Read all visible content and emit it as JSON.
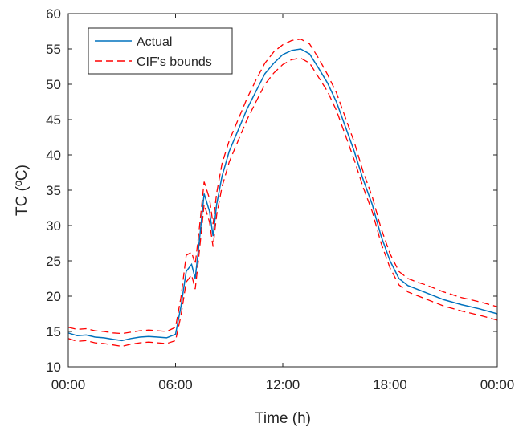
{
  "chart_data": {
    "type": "line",
    "title": "",
    "xlabel": "Time (h)",
    "ylabel": "TC (ºC)",
    "xlim": [
      0,
      24
    ],
    "ylim": [
      10,
      60
    ],
    "xticks": [
      0,
      6,
      12,
      18,
      24
    ],
    "xtick_labels": [
      "00:00",
      "06:00",
      "12:00",
      "18:00",
      "00:00"
    ],
    "yticks": [
      10,
      15,
      20,
      25,
      30,
      35,
      40,
      45,
      50,
      55,
      60
    ],
    "ytick_labels": [
      "10",
      "15",
      "20",
      "25",
      "30",
      "35",
      "40",
      "45",
      "50",
      "55",
      "60"
    ],
    "grid": false,
    "legend_position": "top-left",
    "x": [
      0,
      0.5,
      1,
      1.5,
      2,
      2.5,
      3,
      3.5,
      4,
      4.5,
      5,
      5.5,
      6,
      6.3,
      6.6,
      6.9,
      7.1,
      7.3,
      7.6,
      7.9,
      8.1,
      8.3,
      8.6,
      9,
      9.5,
      10,
      10.5,
      11,
      11.5,
      12,
      12.5,
      13,
      13.5,
      14,
      14.5,
      15,
      15.5,
      16,
      16.5,
      17,
      17.5,
      18,
      18.5,
      19,
      19.5,
      20,
      21,
      22,
      23,
      24
    ],
    "series": [
      {
        "name": "Actual",
        "color": "#0072BD",
        "style": "solid",
        "values": [
          14.8,
          14.4,
          14.5,
          14.2,
          14.1,
          13.9,
          13.7,
          14.0,
          14.2,
          14.3,
          14.2,
          14.1,
          14.6,
          18.5,
          23.5,
          24.5,
          22.5,
          27,
          34.5,
          32,
          28.5,
          33,
          37,
          40.5,
          43.5,
          46.5,
          49,
          51.5,
          53,
          54.2,
          54.8,
          55.0,
          54.3,
          52.3,
          50.2,
          47.5,
          44,
          40.5,
          36.5,
          33,
          28.5,
          25,
          22.5,
          21.5,
          21.0,
          20.5,
          19.5,
          18.8,
          18.2,
          17.5
        ]
      },
      {
        "name": "CIF's bounds",
        "color": "#FF0000",
        "style": "dashed",
        "upper": [
          15.6,
          15.3,
          15.4,
          15.1,
          15.0,
          14.8,
          14.7,
          14.9,
          15.1,
          15.2,
          15.1,
          15.0,
          15.6,
          19.8,
          25.8,
          26.2,
          24.5,
          28.8,
          36.2,
          33.8,
          30.2,
          34.6,
          38.8,
          42.0,
          45.0,
          48.0,
          50.6,
          53.0,
          54.6,
          55.6,
          56.2,
          56.4,
          55.7,
          53.7,
          51.4,
          48.8,
          45.3,
          41.8,
          37.6,
          34.1,
          29.6,
          26.0,
          23.5,
          22.5,
          22.0,
          21.6,
          20.6,
          19.8,
          19.2,
          18.5
        ],
        "lower": [
          14.0,
          13.6,
          13.7,
          13.4,
          13.3,
          13.1,
          12.9,
          13.2,
          13.4,
          13.5,
          13.4,
          13.3,
          13.7,
          17.2,
          22.0,
          23.0,
          21.0,
          25.5,
          33.0,
          30.5,
          27.0,
          31.5,
          35.5,
          39.0,
          42.0,
          45.0,
          47.5,
          50.0,
          51.6,
          52.8,
          53.5,
          53.7,
          53.0,
          51.0,
          49.0,
          46.3,
          42.8,
          39.3,
          35.4,
          32.0,
          27.5,
          24.0,
          21.6,
          20.6,
          20.1,
          19.6,
          18.6,
          17.9,
          17.3,
          16.6
        ]
      }
    ]
  }
}
